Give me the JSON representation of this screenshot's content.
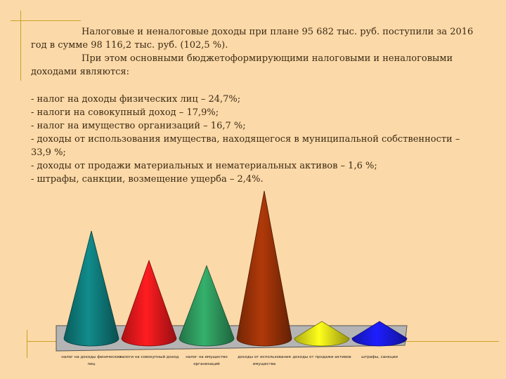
{
  "paragraphs": [
    "Налоговые и неналоговые доходы при плане 95 682 тыс. руб. поступили за 2016 год в сумме 98 116,2 тыс. руб. (102,5 %).",
    "При этом основными бюджетоформирующими налоговыми и неналоговыми доходами являются:"
  ],
  "list_items": [
    "- налог на доходы физических лиц – 24,7%;",
    "- налоги на совокупный доход – 17,9%;",
    "- налог на имущество организаций – 16,7 %;",
    "- доходы от использования имущества, находящегося в муниципальной собственности – 33,9 %;",
    "- доходы от продажи материальных и нематериальных активов – 1,6 %;",
    "- штрафы, санкции, возмещение ущерба – 2,4%."
  ],
  "chart_data": {
    "type": "bar",
    "shape": "cone",
    "categories": [
      [
        "налог на доходы физических",
        "лиц"
      ],
      [
        "налоги на совокупный доход"
      ],
      [
        "налог на имущество",
        "организаций"
      ],
      [
        "доходы от использования",
        "имущества"
      ],
      [
        "доходы от продажи активов"
      ],
      [
        "штрафы, санкции"
      ]
    ],
    "values": [
      24.7,
      17.9,
      16.7,
      33.9,
      1.6,
      2.4
    ],
    "colors": [
      "#0f7a7a",
      "#e8181c",
      "#2e9a5e",
      "#9a3208",
      "#e8e418",
      "#1a1ae8"
    ],
    "floor_color": "#b4b4b4",
    "unit": "%"
  }
}
